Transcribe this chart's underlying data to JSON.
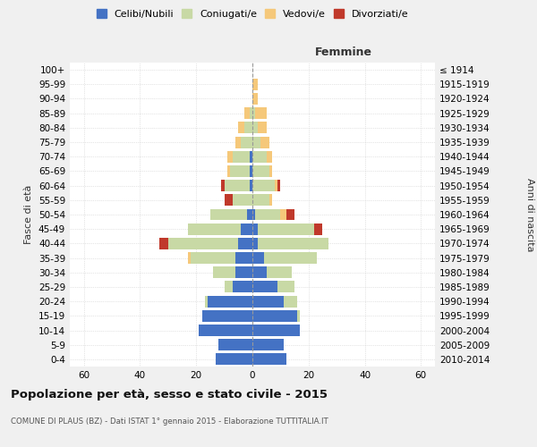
{
  "age_groups": [
    "0-4",
    "5-9",
    "10-14",
    "15-19",
    "20-24",
    "25-29",
    "30-34",
    "35-39",
    "40-44",
    "45-49",
    "50-54",
    "55-59",
    "60-64",
    "65-69",
    "70-74",
    "75-79",
    "80-84",
    "85-89",
    "90-94",
    "95-99",
    "100+"
  ],
  "birth_years": [
    "2010-2014",
    "2005-2009",
    "2000-2004",
    "1995-1999",
    "1990-1994",
    "1985-1989",
    "1980-1984",
    "1975-1979",
    "1970-1974",
    "1965-1969",
    "1960-1964",
    "1955-1959",
    "1950-1954",
    "1945-1949",
    "1940-1944",
    "1935-1939",
    "1930-1934",
    "1925-1929",
    "1920-1924",
    "1915-1919",
    "≤ 1914"
  ],
  "male": {
    "celibi": [
      13,
      12,
      19,
      18,
      16,
      7,
      6,
      6,
      5,
      4,
      2,
      0,
      1,
      1,
      1,
      0,
      0,
      0,
      0,
      0,
      0
    ],
    "coniugati": [
      0,
      0,
      0,
      0,
      1,
      3,
      8,
      16,
      25,
      19,
      13,
      7,
      9,
      7,
      6,
      4,
      3,
      1,
      0,
      0,
      0
    ],
    "vedovi": [
      0,
      0,
      0,
      0,
      0,
      0,
      0,
      1,
      0,
      0,
      0,
      0,
      0,
      1,
      2,
      2,
      2,
      2,
      0,
      0,
      0
    ],
    "divorziati": [
      0,
      0,
      0,
      0,
      0,
      0,
      0,
      0,
      3,
      0,
      0,
      3,
      1,
      0,
      0,
      0,
      0,
      0,
      0,
      0,
      0
    ]
  },
  "female": {
    "nubili": [
      12,
      11,
      17,
      16,
      11,
      9,
      5,
      4,
      2,
      2,
      1,
      0,
      0,
      0,
      0,
      0,
      0,
      0,
      0,
      0,
      0
    ],
    "coniugate": [
      0,
      0,
      0,
      1,
      5,
      6,
      9,
      19,
      25,
      20,
      9,
      6,
      8,
      6,
      5,
      3,
      2,
      1,
      0,
      0,
      0
    ],
    "vedove": [
      0,
      0,
      0,
      0,
      0,
      0,
      0,
      0,
      0,
      0,
      2,
      1,
      1,
      1,
      2,
      3,
      3,
      4,
      2,
      2,
      0
    ],
    "divorziate": [
      0,
      0,
      0,
      0,
      0,
      0,
      0,
      0,
      0,
      3,
      3,
      0,
      1,
      0,
      0,
      0,
      0,
      0,
      0,
      0,
      0
    ]
  },
  "colors": {
    "celibi": "#4472c4",
    "coniugati": "#c8d9a5",
    "vedovi": "#f5c87a",
    "divorziati": "#c0392b"
  },
  "xlim": 65,
  "title": "Popolazione per età, sesso e stato civile - 2015",
  "subtitle": "COMUNE DI PLAUS (BZ) - Dati ISTAT 1° gennaio 2015 - Elaborazione TUTTITALIA.IT",
  "ylabel_left": "Fasce di età",
  "ylabel_right": "Anni di nascita",
  "xlabel_right": "Femmine",
  "bg_color": "#f0f0f0",
  "plot_bg_color": "#ffffff"
}
